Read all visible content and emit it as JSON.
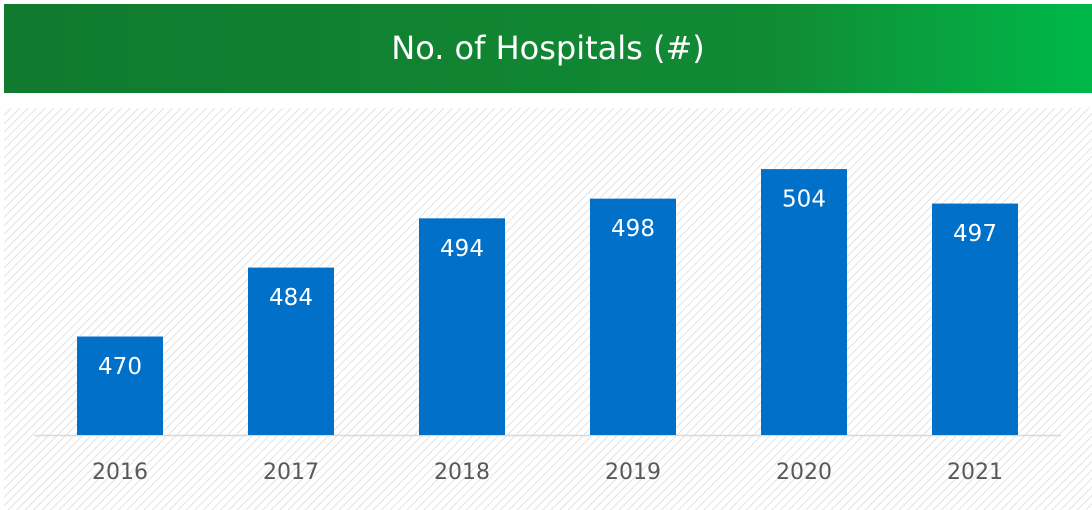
{
  "chart_data": {
    "type": "bar",
    "title": "No. of Hospitals (#)",
    "categories": [
      "2016",
      "2017",
      "2018",
      "2019",
      "2020",
      "2021"
    ],
    "values": [
      470,
      484,
      494,
      498,
      504,
      497
    ],
    "color": "#0070c8",
    "ylim": [
      450,
      516
    ]
  }
}
